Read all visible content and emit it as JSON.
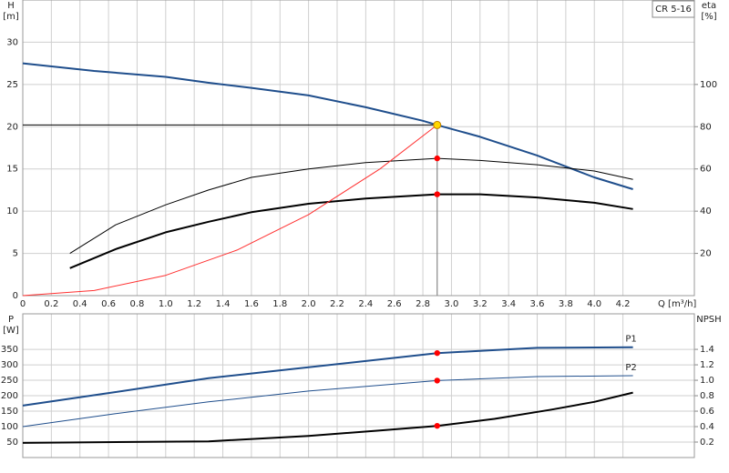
{
  "chart_data": [
    {
      "type": "line",
      "title": "CR 5-16",
      "x_label": "Q [m³/h]",
      "y_label": [
        "H",
        "[m]"
      ],
      "y2_label": [
        "eta",
        "[%]"
      ],
      "xlim": [
        0,
        4.7
      ],
      "xticks": [
        0,
        0.2,
        0.4,
        0.6,
        0.8,
        {
          "value": 1,
          "label": "1.0"
        },
        1.2,
        1.4,
        1.6,
        1.8,
        {
          "value": 2,
          "label": "2.0"
        },
        2.2,
        2.4,
        2.6,
        2.8,
        {
          "value": 3,
          "label": "3.0"
        },
        3.2,
        3.4,
        3.6,
        3.8,
        {
          "value": 4,
          "label": "4.0"
        },
        4.2
      ],
      "ylim": [
        0,
        35
      ],
      "yticks": [
        0,
        5,
        10,
        15,
        20,
        25,
        30
      ],
      "y2lim": [
        0,
        140
      ],
      "y2ticks": [
        20,
        40,
        60,
        80,
        100
      ],
      "grid": true,
      "crosshair": true,
      "series": [
        {
          "color": "#1f4e8c",
          "line_width": 2,
          "x": [
            0,
            0.5,
            1.0,
            1.3,
            1.6,
            2.0,
            2.4,
            2.8,
            2.9,
            3.2,
            3.6,
            4.0,
            4.27
          ],
          "values": [
            27.5,
            26.6,
            25.9,
            25.2,
            24.6,
            23.7,
            22.3,
            20.7,
            20.2,
            18.8,
            16.6,
            14.0,
            12.6
          ]
        },
        {
          "color": "#000000",
          "line_width": 1,
          "axis": "y2",
          "x": [
            0.33,
            0.65,
            1.0,
            1.3,
            1.6,
            2.0,
            2.4,
            2.9,
            3.2,
            3.6,
            4.0,
            4.27
          ],
          "values": [
            20,
            33.5,
            43,
            50,
            56,
            60,
            63,
            65,
            64,
            62,
            59,
            55
          ]
        },
        {
          "color": "#000000",
          "line_width": 2,
          "axis": "y2",
          "x": [
            0.33,
            0.65,
            1.0,
            1.3,
            1.6,
            2.0,
            2.4,
            2.9,
            3.2,
            3.6,
            4.0,
            4.27
          ],
          "values": [
            13,
            22,
            30,
            35,
            39.5,
            43.5,
            46,
            48,
            48,
            46.5,
            44,
            41
          ]
        },
        {
          "color": "#ff3030",
          "line_width": 1,
          "x": [
            0,
            0.5,
            1.0,
            1.5,
            2.0,
            2.5,
            2.9
          ],
          "values": [
            0,
            0.6,
            2.4,
            5.4,
            9.6,
            15.0,
            20.2
          ]
        }
      ],
      "points": [
        {
          "x": 2.9,
          "y": 20.2,
          "color": "#ffd700"
        },
        {
          "x": 2.9,
          "y": 65,
          "axis": "y2",
          "color": "#ff0000"
        },
        {
          "x": 2.9,
          "y": 48,
          "axis": "y2",
          "color": "#ff0000"
        }
      ]
    },
    {
      "type": "line",
      "y_label": [
        "P",
        "[W]"
      ],
      "y2_label": [
        "NPSH"
      ],
      "xlim": [
        0,
        4.7
      ],
      "ylim": [
        0,
        465
      ],
      "yticks": [
        50,
        100,
        150,
        200,
        250,
        300,
        350
      ],
      "y2lim": [
        0,
        1.86
      ],
      "y2ticks": [
        0.2,
        0.4,
        0.6,
        0.8,
        {
          "value": 1,
          "label": "1.0"
        },
        1.2,
        1.4
      ],
      "grid": true,
      "series": [
        {
          "name": "P1",
          "color": "#1f4e8c",
          "line_width": 2,
          "x": [
            0,
            0.65,
            1.3,
            2.0,
            2.9,
            3.6,
            4.27
          ],
          "values": [
            168,
            212,
            257,
            292,
            338,
            355,
            357
          ]
        },
        {
          "name": "P2",
          "color": "#1f4e8c",
          "line_width": 1,
          "x": [
            0,
            0.65,
            1.3,
            2.0,
            2.9,
            3.6,
            4.27
          ],
          "values": [
            100,
            142,
            180,
            215,
            249,
            262,
            265
          ]
        },
        {
          "color": "#000000",
          "line_width": 2,
          "axis": "y2",
          "x": [
            0,
            1.3,
            2.0,
            2.5,
            2.9,
            3.3,
            3.7,
            4.0,
            4.27
          ],
          "values": [
            0.19,
            0.21,
            0.28,
            0.35,
            0.41,
            0.5,
            0.62,
            0.72,
            0.84
          ]
        }
      ],
      "points": [
        {
          "x": 2.9,
          "y": 338,
          "color": "#ff0000"
        },
        {
          "x": 2.9,
          "y": 249,
          "color": "#ff0000"
        },
        {
          "x": 2.9,
          "y": 0.41,
          "axis": "y2",
          "color": "#ff0000"
        }
      ]
    }
  ]
}
